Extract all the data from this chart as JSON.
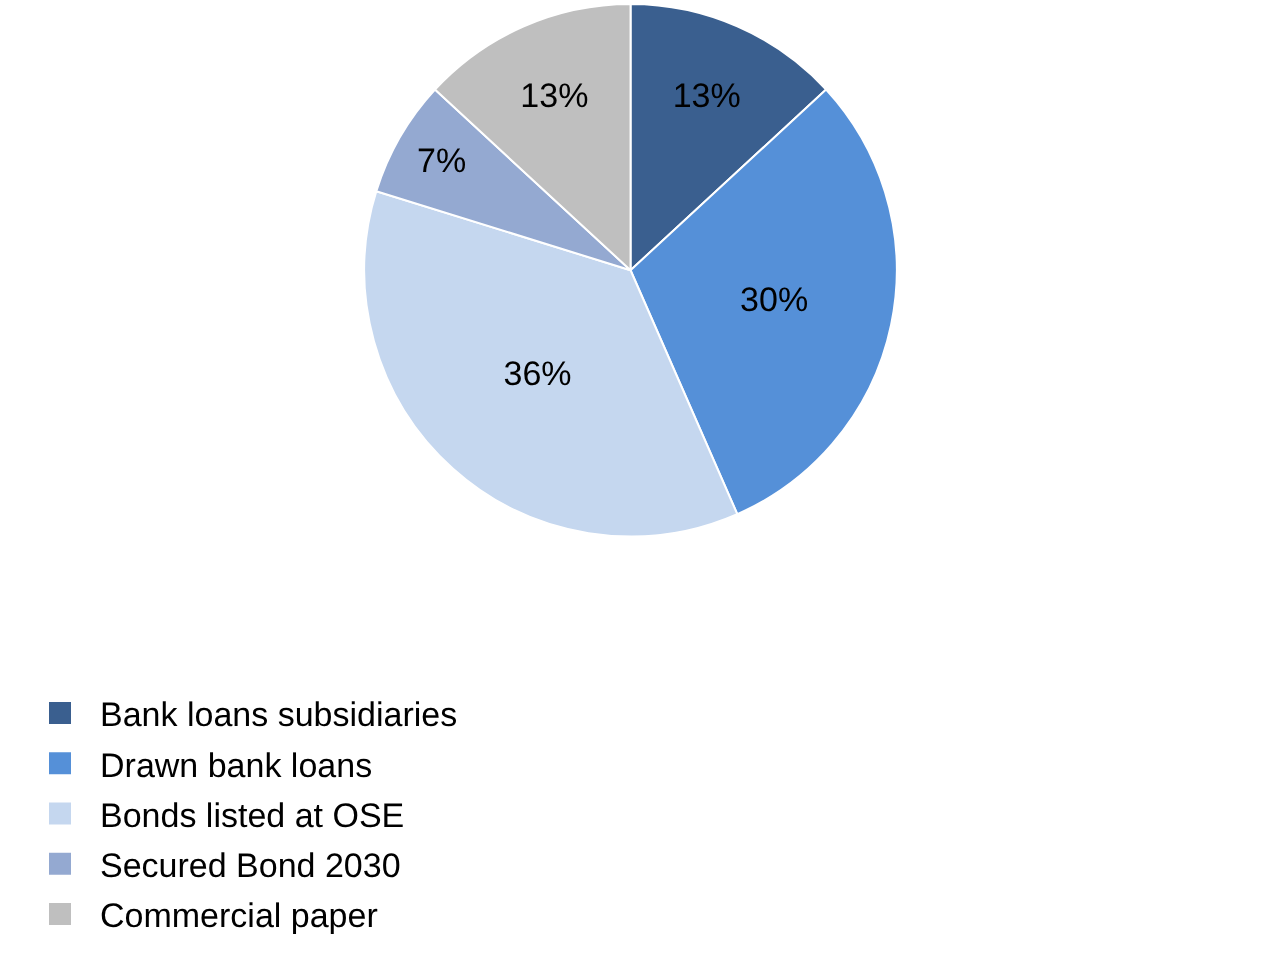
{
  "chart_data": {
    "type": "pie",
    "categories": [
      "Bank loans subsidiaries",
      "Drawn bank loans",
      "Bonds listed at OSE",
      "Secured Bond 2030",
      "Commercial paper"
    ],
    "values": [
      13,
      30,
      36,
      7,
      13
    ],
    "value_labels": [
      "13%",
      "30%",
      "36%",
      "7%",
      "13%"
    ],
    "colors": [
      "#3a5f8f",
      "#5590d8",
      "#c5d7ef",
      "#94a9d1",
      "#bfbfbf"
    ],
    "legend": "bottom"
  }
}
